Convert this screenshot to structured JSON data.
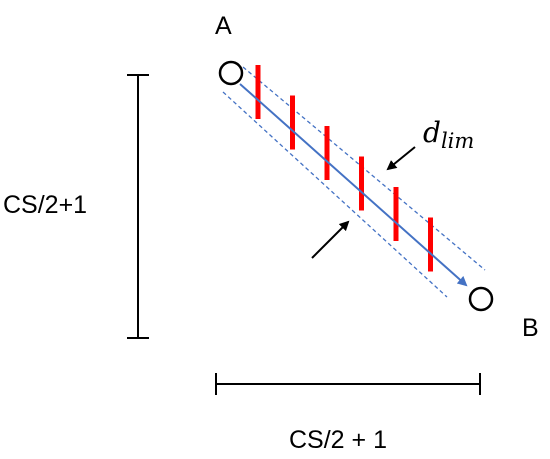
{
  "labels": {
    "point_a": "A",
    "point_b": "B",
    "vertical_dimension": "CS/2+1",
    "horizontal_dimension": "CS/2 + 1",
    "limit_distance_symbol": "d",
    "limit_distance_subscript": "lim"
  },
  "colors": {
    "path_arrow": "#4472C4",
    "corridor_boundary": "#4472C4",
    "ticks": "#FF0000",
    "ink": "#000000"
  },
  "tick_count": 6
}
